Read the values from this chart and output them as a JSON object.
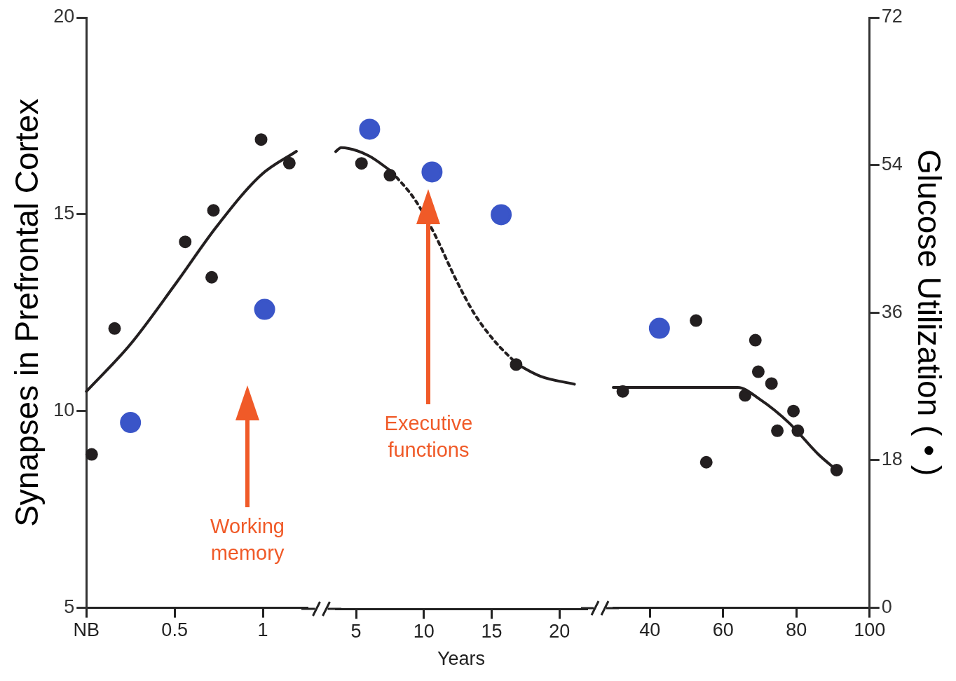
{
  "chart_data": [
    {
      "type": "scatter",
      "ylabel": "Synapses in Prefrontal Cortex",
      "xlim": [
        0,
        1.25
      ],
      "xticks": [
        {
          "value": 0,
          "label": "NB"
        },
        0.5,
        1
      ],
      "ylim": [
        5,
        20
      ],
      "yticks": [
        5,
        10,
        15,
        20
      ],
      "y2lim": [
        0,
        72
      ],
      "grid": false,
      "legend": false,
      "marker": "circle",
      "series": [
        {
          "color": "#231f20",
          "x": [
            0.03,
            0.16,
            0.56,
            0.71,
            0.72,
            0.99,
            1.15
          ],
          "values": [
            8.9,
            12.1,
            14.3,
            13.4,
            15.1,
            16.9,
            16.3
          ]
        },
        {
          "color": "#3a55c8",
          "axis": "y2",
          "x": [
            0.25,
            1.01
          ],
          "values": [
            22.6,
            36.4
          ]
        },
        {
          "type": "line",
          "marker": "none",
          "line_style": "solid",
          "color": "#231f20",
          "x": [
            0,
            0.25,
            0.5,
            0.74,
            0.99,
            1.19
          ],
          "values": [
            10.5,
            11.7,
            13.2,
            14.7,
            16.0,
            16.6
          ]
        }
      ],
      "annotations": [
        "Working memory"
      ]
    },
    {
      "type": "scatter",
      "xlabel": "Years",
      "xlim": [
        3.5,
        22
      ],
      "xticks": [
        5,
        10,
        15,
        20
      ],
      "ylim": [
        5,
        20
      ],
      "y2lim": [
        0,
        72
      ],
      "grid": false,
      "legend": false,
      "marker": "circle",
      "tick_labels": "x",
      "series": [
        {
          "color": "#231f20",
          "x": [
            5.4,
            7.5,
            16.8
          ],
          "values": [
            16.3,
            16.0,
            11.2
          ]
        },
        {
          "color": "#3a55c8",
          "axis": "y2",
          "x": [
            6.0,
            10.6,
            15.7
          ],
          "values": [
            58.4,
            53.2,
            48.0
          ]
        },
        {
          "type": "line",
          "marker": "none",
          "line_style": "solid",
          "color": "#231f20",
          "x": [
            3.5,
            3.9,
            5.9,
            7.6
          ],
          "values": [
            16.6,
            16.7,
            16.5,
            16.1
          ]
        },
        {
          "type": "line",
          "marker": "none",
          "line_style": "dotted",
          "color": "#231f20",
          "x": [
            7.6,
            9.3,
            10.8,
            12.3,
            13.7,
            15.2,
            16.9
          ],
          "values": [
            16.1,
            15.4,
            14.5,
            13.4,
            12.5,
            11.8,
            11.2
          ]
        },
        {
          "type": "line",
          "marker": "none",
          "line_style": "solid",
          "color": "#231f20",
          "x": [
            16.9,
            18.6,
            21.1
          ],
          "values": [
            11.2,
            10.9,
            10.7
          ]
        }
      ],
      "annotations": [
        "Executive functions"
      ]
    },
    {
      "type": "scatter",
      "y2label": "Glucose Utilization ( • )",
      "xlim": [
        30,
        100
      ],
      "xticks": [
        40,
        60,
        80,
        100
      ],
      "ylim": [
        5,
        20
      ],
      "y2lim": [
        0,
        72
      ],
      "y2ticks": [
        0,
        18,
        36,
        54,
        72
      ],
      "grid": false,
      "legend": false,
      "marker": "circle",
      "series": [
        {
          "color": "#231f20",
          "x": [
            32.6,
            52.6,
            55.4,
            66,
            68.8,
            69.6,
            73.2,
            74.8,
            79.2,
            80.4,
            91
          ],
          "values": [
            10.5,
            12.3,
            8.7,
            10.4,
            11.8,
            11.0,
            10.7,
            9.5,
            10.0,
            9.5,
            8.5
          ]
        },
        {
          "color": "#3a55c8",
          "axis": "y2",
          "x": [
            42.6
          ],
          "values": [
            34.1
          ]
        },
        {
          "type": "line",
          "marker": "none",
          "line_style": "solid",
          "color": "#231f20",
          "x": [
            30,
            38,
            52,
            64,
            70,
            78,
            86,
            91
          ],
          "values": [
            10.6,
            10.6,
            10.6,
            10.6,
            10.3,
            9.7,
            8.9,
            8.5
          ]
        }
      ]
    }
  ]
}
